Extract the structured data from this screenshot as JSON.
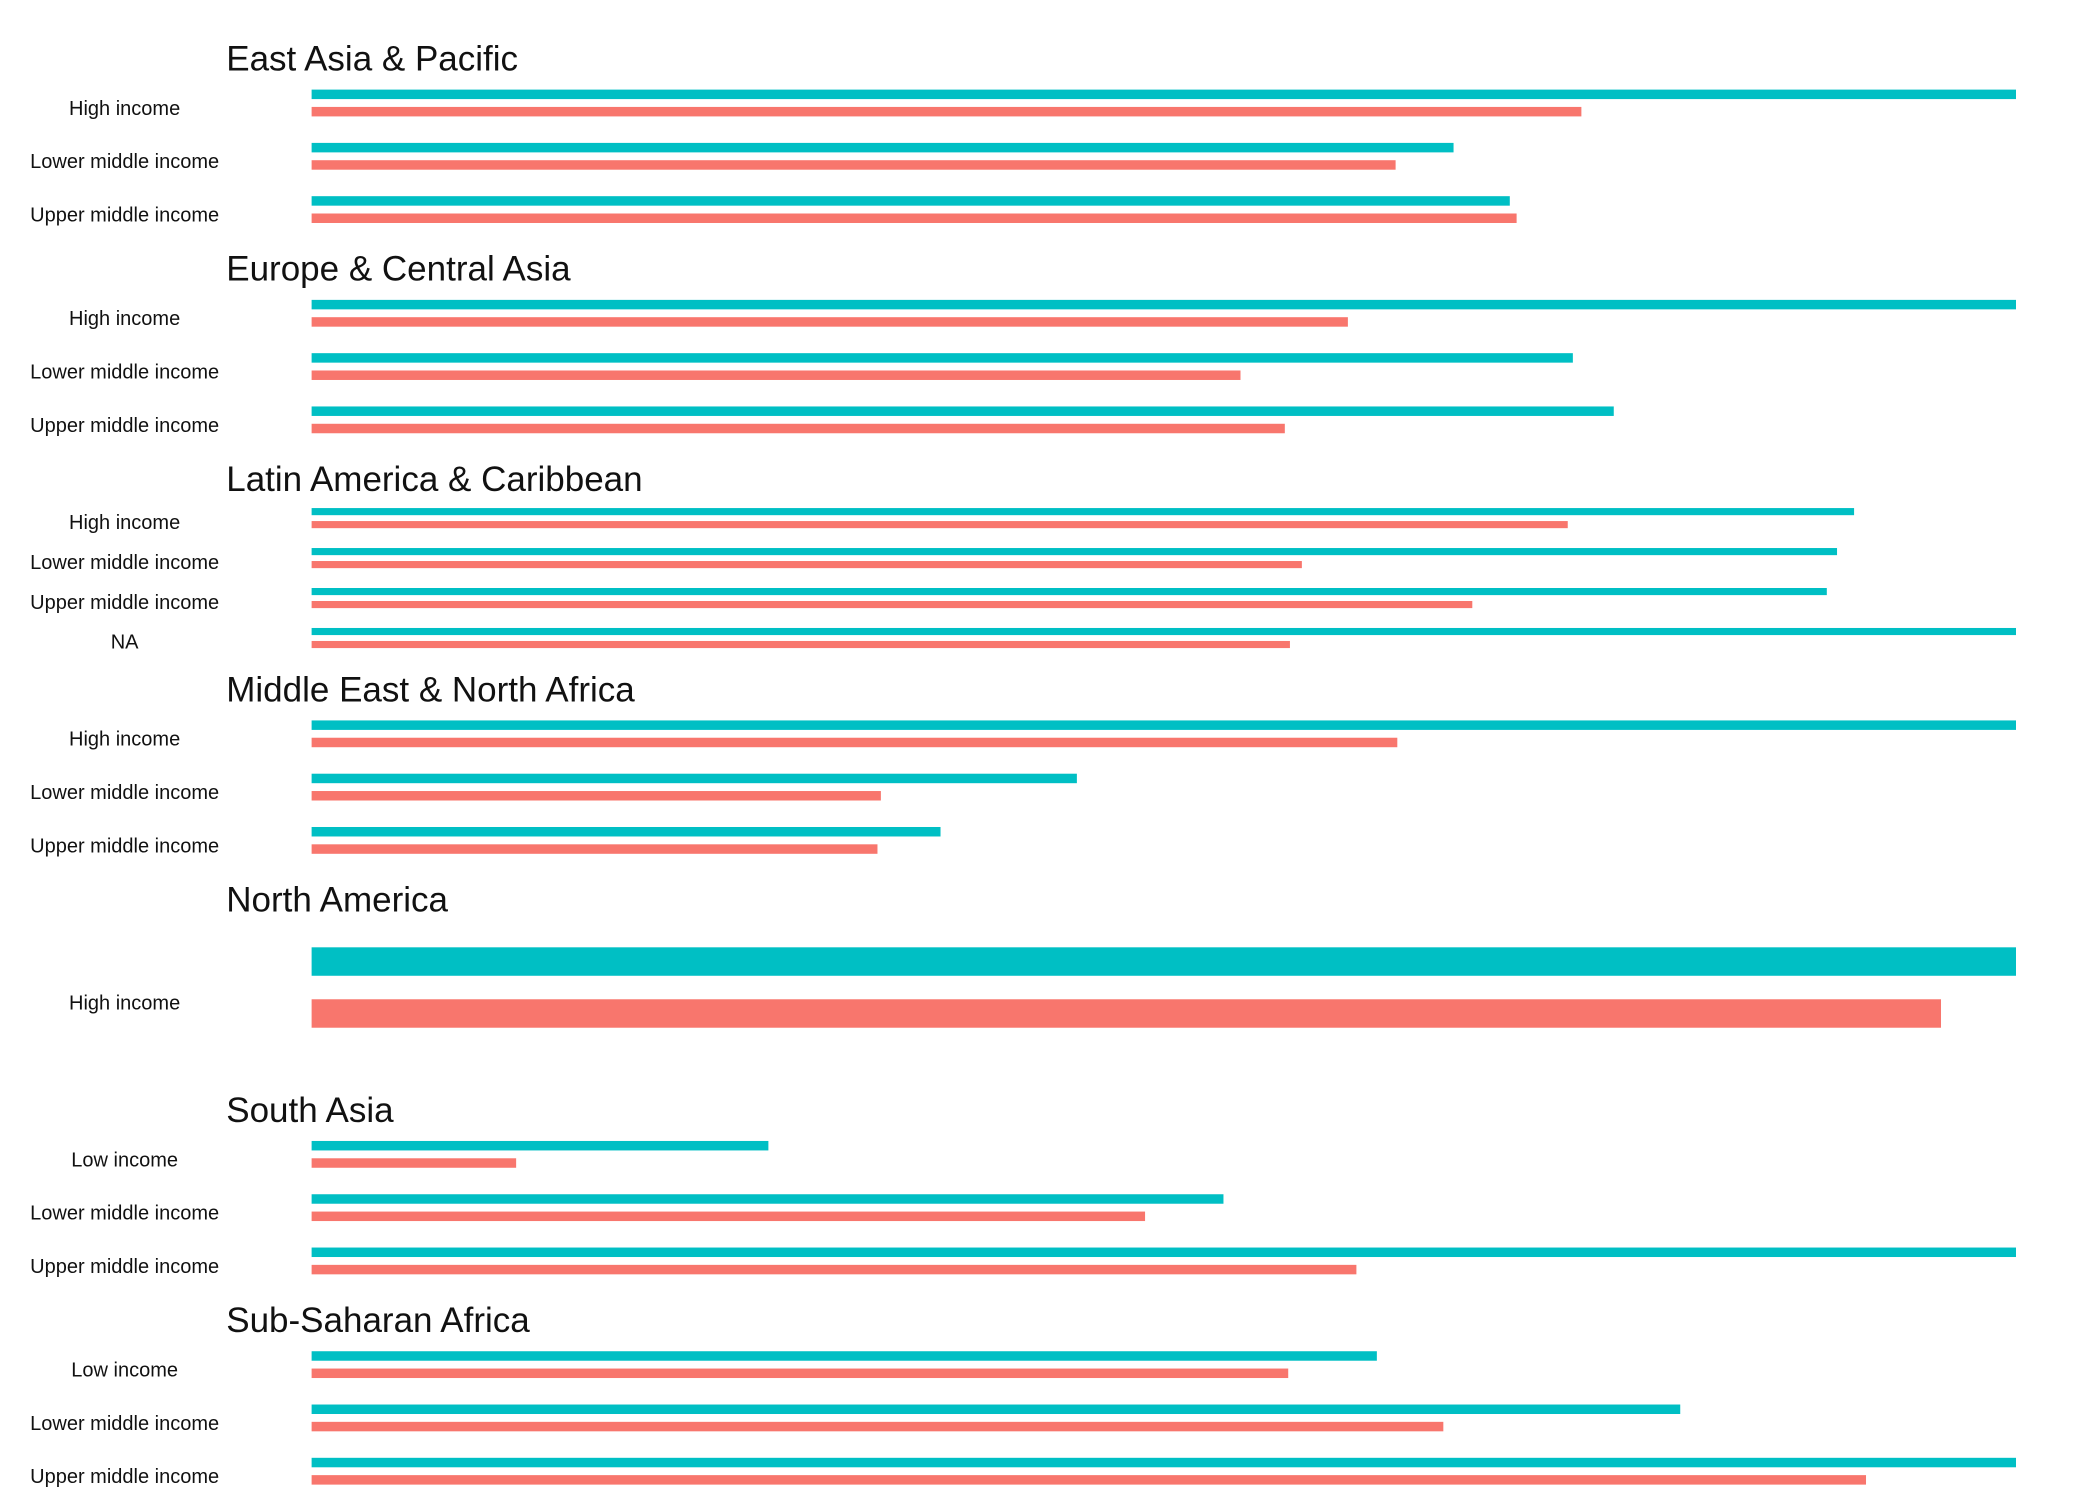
{
  "chart_data": {
    "type": "bar",
    "orientation": "horizontal",
    "grid": false,
    "legend": "none",
    "colors": {
      "teal": "#00BFC4",
      "salmon": "#F8766D"
    },
    "xlim": [
      0,
      1
    ],
    "panels": [
      {
        "title": "East Asia & Pacific",
        "rows": [
          {
            "label": "High income",
            "teal": 1.0,
            "salmon": 0.745
          },
          {
            "label": "Lower middle income",
            "teal": 0.67,
            "salmon": 0.636
          },
          {
            "label": "Upper middle income",
            "teal": 0.703,
            "salmon": 0.707
          }
        ]
      },
      {
        "title": "Europe & Central Asia",
        "rows": [
          {
            "label": "High income",
            "teal": 1.0,
            "salmon": 0.608
          },
          {
            "label": "Lower middle income",
            "teal": 0.74,
            "salmon": 0.545
          },
          {
            "label": "Upper middle income",
            "teal": 0.764,
            "salmon": 0.571
          }
        ]
      },
      {
        "title": "Latin America & Caribbean",
        "rows": [
          {
            "label": "High income",
            "teal": 0.905,
            "salmon": 0.737
          },
          {
            "label": "Lower middle income",
            "teal": 0.895,
            "salmon": 0.581
          },
          {
            "label": "Upper middle income",
            "teal": 0.889,
            "salmon": 0.681
          },
          {
            "label": "NA",
            "teal": 1.0,
            "salmon": 0.574
          }
        ]
      },
      {
        "title": "Middle East & North Africa",
        "rows": [
          {
            "label": "High income",
            "teal": 1.0,
            "salmon": 0.637
          },
          {
            "label": "Lower middle income",
            "teal": 0.449,
            "salmon": 0.334
          },
          {
            "label": "Upper middle income",
            "teal": 0.369,
            "salmon": 0.332
          }
        ]
      },
      {
        "title": "North America",
        "rows": [
          {
            "label": "High income",
            "teal": 1.0,
            "salmon": 0.956
          }
        ]
      },
      {
        "title": "South Asia",
        "rows": [
          {
            "label": "Low income",
            "teal": 0.268,
            "salmon": 0.12
          },
          {
            "label": "Lower middle income",
            "teal": 0.535,
            "salmon": 0.489
          },
          {
            "label": "Upper middle income",
            "teal": 1.0,
            "salmon": 0.613
          }
        ]
      },
      {
        "title": "Sub-Saharan Africa",
        "rows": [
          {
            "label": "Low income",
            "teal": 0.625,
            "salmon": 0.573
          },
          {
            "label": "Lower middle income",
            "teal": 0.803,
            "salmon": 0.664
          },
          {
            "label": "Upper middle income",
            "teal": 1.0,
            "salmon": 0.912
          }
        ]
      }
    ]
  }
}
